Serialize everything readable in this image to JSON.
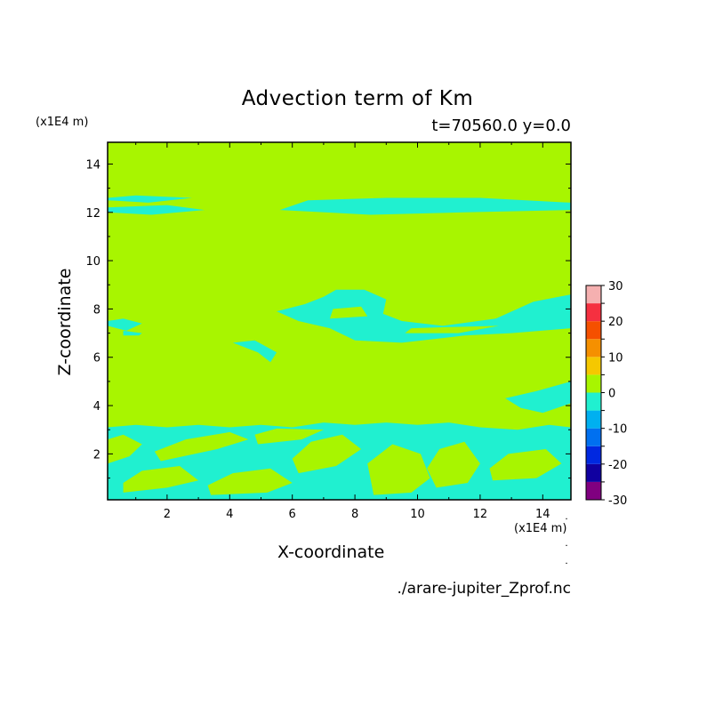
{
  "chart_data": {
    "type": "heatmap",
    "title": "Advection term of Km",
    "subtitle": "t=70560.0 y=0.0",
    "xlabel": "X-coordinate",
    "ylabel": "Z-coordinate",
    "x_scale_label": "(x1E4 m)",
    "y_scale_label": "(x1E4 m)",
    "xlim": [
      0.1,
      14.9
    ],
    "ylim": [
      0.1,
      14.9
    ],
    "x_ticks": [
      2,
      4,
      6,
      8,
      10,
      12,
      14
    ],
    "y_ticks": [
      2,
      4,
      6,
      8,
      10,
      12,
      14
    ],
    "background_level": {
      "range": [
        0,
        5
      ],
      "color": "#a8f500"
    },
    "colorbar": {
      "levels": [
        -30,
        -25,
        -20,
        -15,
        -10,
        -5,
        0,
        5,
        10,
        15,
        20,
        25,
        30
      ],
      "labels": [
        "30",
        "20",
        "10",
        "0",
        "-10",
        "-20",
        "-30"
      ],
      "colors": [
        "#800080",
        "#1000a0",
        "#0028e0",
        "#0070f0",
        "#00b0f0",
        "#20f0d0",
        "#a8f500",
        "#f5c800",
        "#f59000",
        "#f55000",
        "#f53040",
        "#f5b0b0"
      ]
    },
    "regions": [
      {
        "name": "band_z12_left",
        "level_range": [
          -5,
          0
        ],
        "points": [
          [
            0.1,
            12.0
          ],
          [
            1.5,
            11.9
          ],
          [
            3.2,
            12.1
          ],
          [
            2.0,
            12.3
          ],
          [
            0.1,
            12.2
          ]
        ]
      },
      {
        "name": "band_z12_left_top",
        "level_range": [
          -5,
          0
        ],
        "points": [
          [
            0.1,
            12.5
          ],
          [
            1.4,
            12.4
          ],
          [
            2.8,
            12.6
          ],
          [
            1.0,
            12.7
          ],
          [
            0.1,
            12.6
          ]
        ]
      },
      {
        "name": "band_z12_right",
        "level_range": [
          -5,
          0
        ],
        "points": [
          [
            5.6,
            12.1
          ],
          [
            8.5,
            11.9
          ],
          [
            11.5,
            12.0
          ],
          [
            14.9,
            12.1
          ],
          [
            14.9,
            12.4
          ],
          [
            12.0,
            12.6
          ],
          [
            9.0,
            12.6
          ],
          [
            6.5,
            12.5
          ]
        ]
      },
      {
        "name": "blob_z8_left",
        "level_range": [
          -5,
          0
        ],
        "points": [
          [
            0.1,
            7.3
          ],
          [
            0.7,
            7.1
          ],
          [
            1.2,
            7.4
          ],
          [
            0.6,
            7.6
          ],
          [
            0.1,
            7.5
          ]
        ]
      },
      {
        "name": "blob_z7_small",
        "level_range": [
          -5,
          0
        ],
        "points": [
          [
            0.6,
            6.9
          ],
          [
            1.1,
            6.9
          ],
          [
            1.2,
            7.0
          ],
          [
            0.6,
            7.1
          ]
        ]
      },
      {
        "name": "blob_z6_x5",
        "level_range": [
          -5,
          0
        ],
        "points": [
          [
            4.1,
            6.6
          ],
          [
            4.9,
            6.2
          ],
          [
            5.3,
            5.8
          ],
          [
            5.5,
            6.2
          ],
          [
            4.8,
            6.7
          ]
        ]
      },
      {
        "name": "blob_z8_center",
        "level_range": [
          -5,
          0
        ],
        "points": [
          [
            5.5,
            7.9
          ],
          [
            6.4,
            8.2
          ],
          [
            7.0,
            8.5
          ],
          [
            7.4,
            8.8
          ],
          [
            8.3,
            8.8
          ],
          [
            9.0,
            8.4
          ],
          [
            8.9,
            7.8
          ],
          [
            9.5,
            7.5
          ],
          [
            10.8,
            7.3
          ],
          [
            12.5,
            7.6
          ],
          [
            13.7,
            8.3
          ],
          [
            14.9,
            8.6
          ],
          [
            14.9,
            7.2
          ],
          [
            13.0,
            7.0
          ],
          [
            11.5,
            6.9
          ],
          [
            9.5,
            6.6
          ],
          [
            8.0,
            6.7
          ],
          [
            7.2,
            7.2
          ],
          [
            6.2,
            7.5
          ]
        ]
      },
      {
        "name": "blob_z4_right",
        "level_range": [
          -5,
          0
        ],
        "points": [
          [
            12.8,
            4.3
          ],
          [
            13.8,
            4.6
          ],
          [
            14.9,
            5.0
          ],
          [
            14.9,
            4.1
          ],
          [
            14.0,
            3.7
          ],
          [
            13.3,
            3.9
          ]
        ]
      },
      {
        "name": "band_bottom",
        "level_range": [
          -5,
          0
        ],
        "points": [
          [
            0.1,
            0.1
          ],
          [
            14.9,
            0.1
          ],
          [
            14.9,
            3.1
          ],
          [
            14.2,
            3.2
          ],
          [
            13.2,
            3.0
          ],
          [
            12.0,
            3.1
          ],
          [
            11.0,
            3.3
          ],
          [
            10.0,
            3.2
          ],
          [
            9.0,
            3.3
          ],
          [
            8.0,
            3.2
          ],
          [
            7.0,
            3.3
          ],
          [
            6.0,
            3.1
          ],
          [
            5.0,
            3.2
          ],
          [
            4.0,
            3.1
          ],
          [
            3.0,
            3.2
          ],
          [
            2.0,
            3.1
          ],
          [
            1.0,
            3.2
          ],
          [
            0.1,
            3.1
          ]
        ]
      }
    ],
    "positive_patches": [
      {
        "name": "bottom_patch_1",
        "points": [
          [
            0.6,
            0.4
          ],
          [
            2.0,
            0.6
          ],
          [
            3.0,
            0.9
          ],
          [
            2.4,
            1.5
          ],
          [
            1.2,
            1.3
          ],
          [
            0.6,
            0.8
          ]
        ]
      },
      {
        "name": "bottom_patch_2",
        "points": [
          [
            1.8,
            1.7
          ],
          [
            3.6,
            2.2
          ],
          [
            4.6,
            2.6
          ],
          [
            4.0,
            2.9
          ],
          [
            2.6,
            2.6
          ],
          [
            1.6,
            2.1
          ]
        ]
      },
      {
        "name": "bottom_patch_3",
        "points": [
          [
            3.4,
            0.3
          ],
          [
            5.2,
            0.4
          ],
          [
            6.0,
            0.8
          ],
          [
            5.3,
            1.4
          ],
          [
            4.1,
            1.2
          ],
          [
            3.3,
            0.7
          ]
        ]
      },
      {
        "name": "bottom_patch_4",
        "points": [
          [
            6.2,
            1.2
          ],
          [
            7.4,
            1.5
          ],
          [
            8.2,
            2.2
          ],
          [
            7.6,
            2.8
          ],
          [
            6.6,
            2.5
          ],
          [
            6.0,
            1.8
          ]
        ]
      },
      {
        "name": "bottom_patch_5",
        "points": [
          [
            8.6,
            0.3
          ],
          [
            9.8,
            0.4
          ],
          [
            10.4,
            1.0
          ],
          [
            10.1,
            2.0
          ],
          [
            9.2,
            2.4
          ],
          [
            8.4,
            1.6
          ]
        ]
      },
      {
        "name": "bottom_patch_6",
        "points": [
          [
            10.6,
            0.6
          ],
          [
            11.6,
            0.8
          ],
          [
            12.0,
            1.6
          ],
          [
            11.5,
            2.5
          ],
          [
            10.7,
            2.2
          ],
          [
            10.3,
            1.4
          ]
        ]
      },
      {
        "name": "bottom_patch_7",
        "points": [
          [
            12.4,
            0.9
          ],
          [
            13.8,
            1.0
          ],
          [
            14.6,
            1.6
          ],
          [
            14.1,
            2.2
          ],
          [
            12.9,
            2.0
          ],
          [
            12.3,
            1.4
          ]
        ]
      },
      {
        "name": "bottom_patch_8",
        "points": [
          [
            4.9,
            2.4
          ],
          [
            6.3,
            2.6
          ],
          [
            7.0,
            3.0
          ],
          [
            5.5,
            3.05
          ],
          [
            4.8,
            2.8
          ]
        ]
      },
      {
        "name": "bottom_patch_9",
        "points": [
          [
            0.1,
            1.6
          ],
          [
            0.8,
            1.9
          ],
          [
            1.2,
            2.4
          ],
          [
            0.6,
            2.8
          ],
          [
            0.1,
            2.6
          ]
        ]
      },
      {
        "name": "z8_center_inner",
        "points": [
          [
            7.2,
            7.6
          ],
          [
            8.4,
            7.7
          ],
          [
            8.2,
            8.1
          ],
          [
            7.3,
            8.0
          ]
        ]
      },
      {
        "name": "z7_inner",
        "points": [
          [
            9.6,
            7.0
          ],
          [
            11.3,
            7.0
          ],
          [
            12.6,
            7.3
          ],
          [
            11.0,
            7.25
          ],
          [
            9.8,
            7.2
          ]
        ]
      }
    ]
  },
  "filename": "./arare-jupiter_Zprof.nc",
  "footnote_marks": [
    "˙",
    "˙",
    "˙"
  ]
}
